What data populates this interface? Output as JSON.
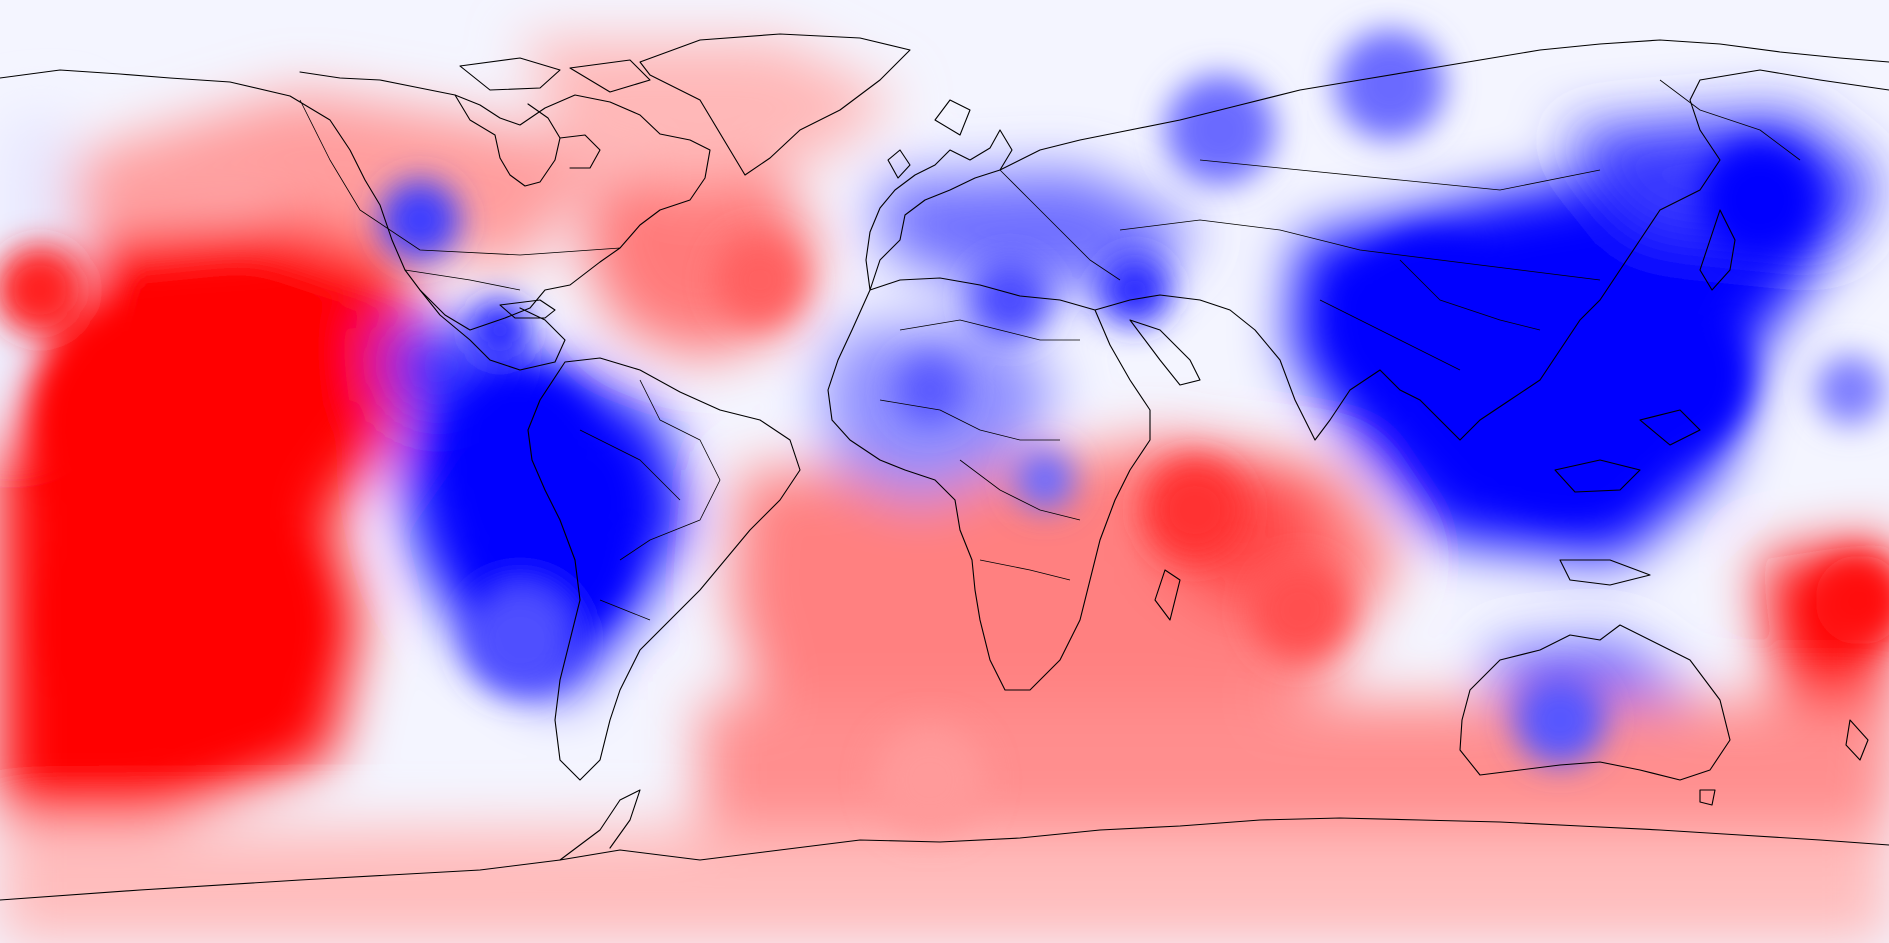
{
  "map": {
    "projection": "equirectangular",
    "field_type": "filled-contour anomaly",
    "lon_range": [
      -180,
      180
    ],
    "lat_range": [
      -90,
      90
    ],
    "colormap": {
      "negative": "#0000ff",
      "neutral": "#ffffff",
      "positive": "#ff0000",
      "levels": 10
    },
    "overlays": [
      "coastlines",
      "country-borders"
    ],
    "legend": false,
    "title": ""
  }
}
